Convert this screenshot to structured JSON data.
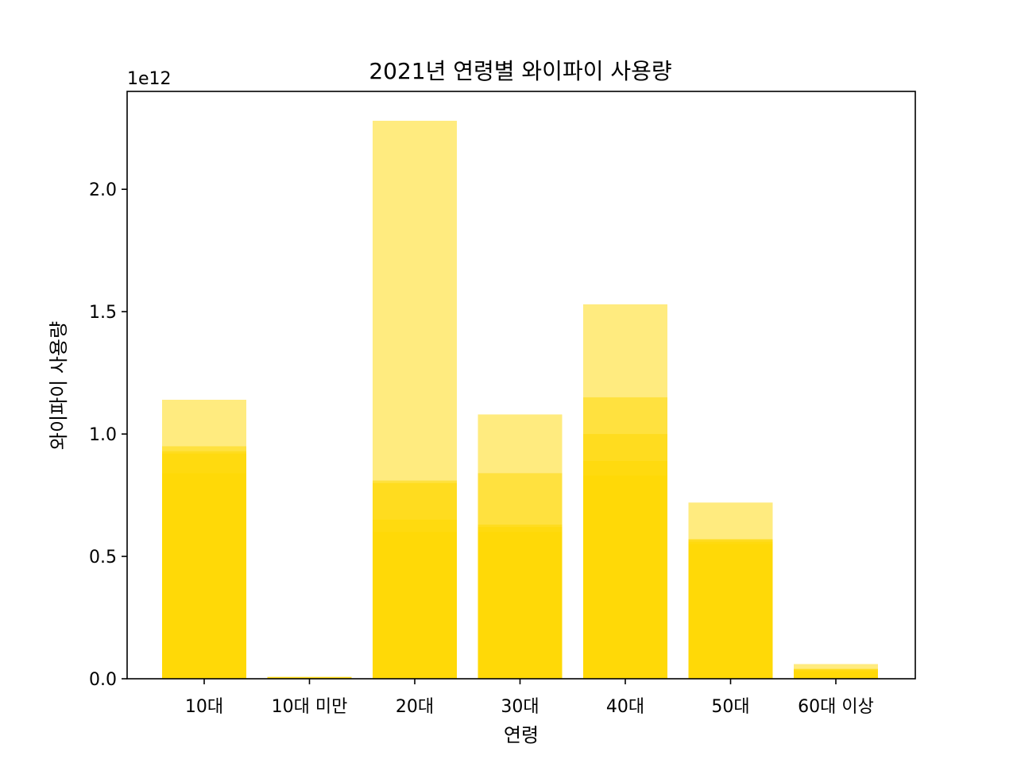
{
  "chart_data": {
    "type": "bar",
    "title": "2021년 연령별 와이파이 사용량",
    "xlabel": "연령",
    "ylabel": "와이파이 사용량",
    "offset_text": "1e12",
    "scale_factor": 1000000000000,
    "categories": [
      "10대",
      "10대 미만",
      "20대",
      "30대",
      "40대",
      "50대",
      "60대 이상"
    ],
    "ylim": [
      0,
      2.4
    ],
    "yticks": [
      0.0,
      0.5,
      1.0,
      1.5,
      2.0
    ],
    "ytick_labels": [
      "0.0",
      "0.5",
      "1.0",
      "1.5",
      "2.0"
    ],
    "grid": false,
    "bar_color": "#FFD700",
    "bar_alpha": 0.5,
    "series": [
      {
        "values": [
          0.84,
          0.003,
          0.6,
          0.6,
          0.83,
          0.55,
          0.03
        ]
      },
      {
        "values": [
          0.93,
          0.005,
          0.65,
          0.62,
          0.89,
          0.57,
          0.035
        ]
      },
      {
        "values": [
          0.95,
          0.006,
          0.8,
          0.63,
          1.0,
          0.57,
          0.04
        ]
      },
      {
        "values": [
          0.92,
          0.007,
          0.81,
          0.84,
          1.15,
          0.56,
          0.04
        ]
      },
      {
        "values": [
          1.14,
          0.008,
          2.28,
          1.08,
          1.53,
          0.72,
          0.06
        ]
      }
    ]
  }
}
